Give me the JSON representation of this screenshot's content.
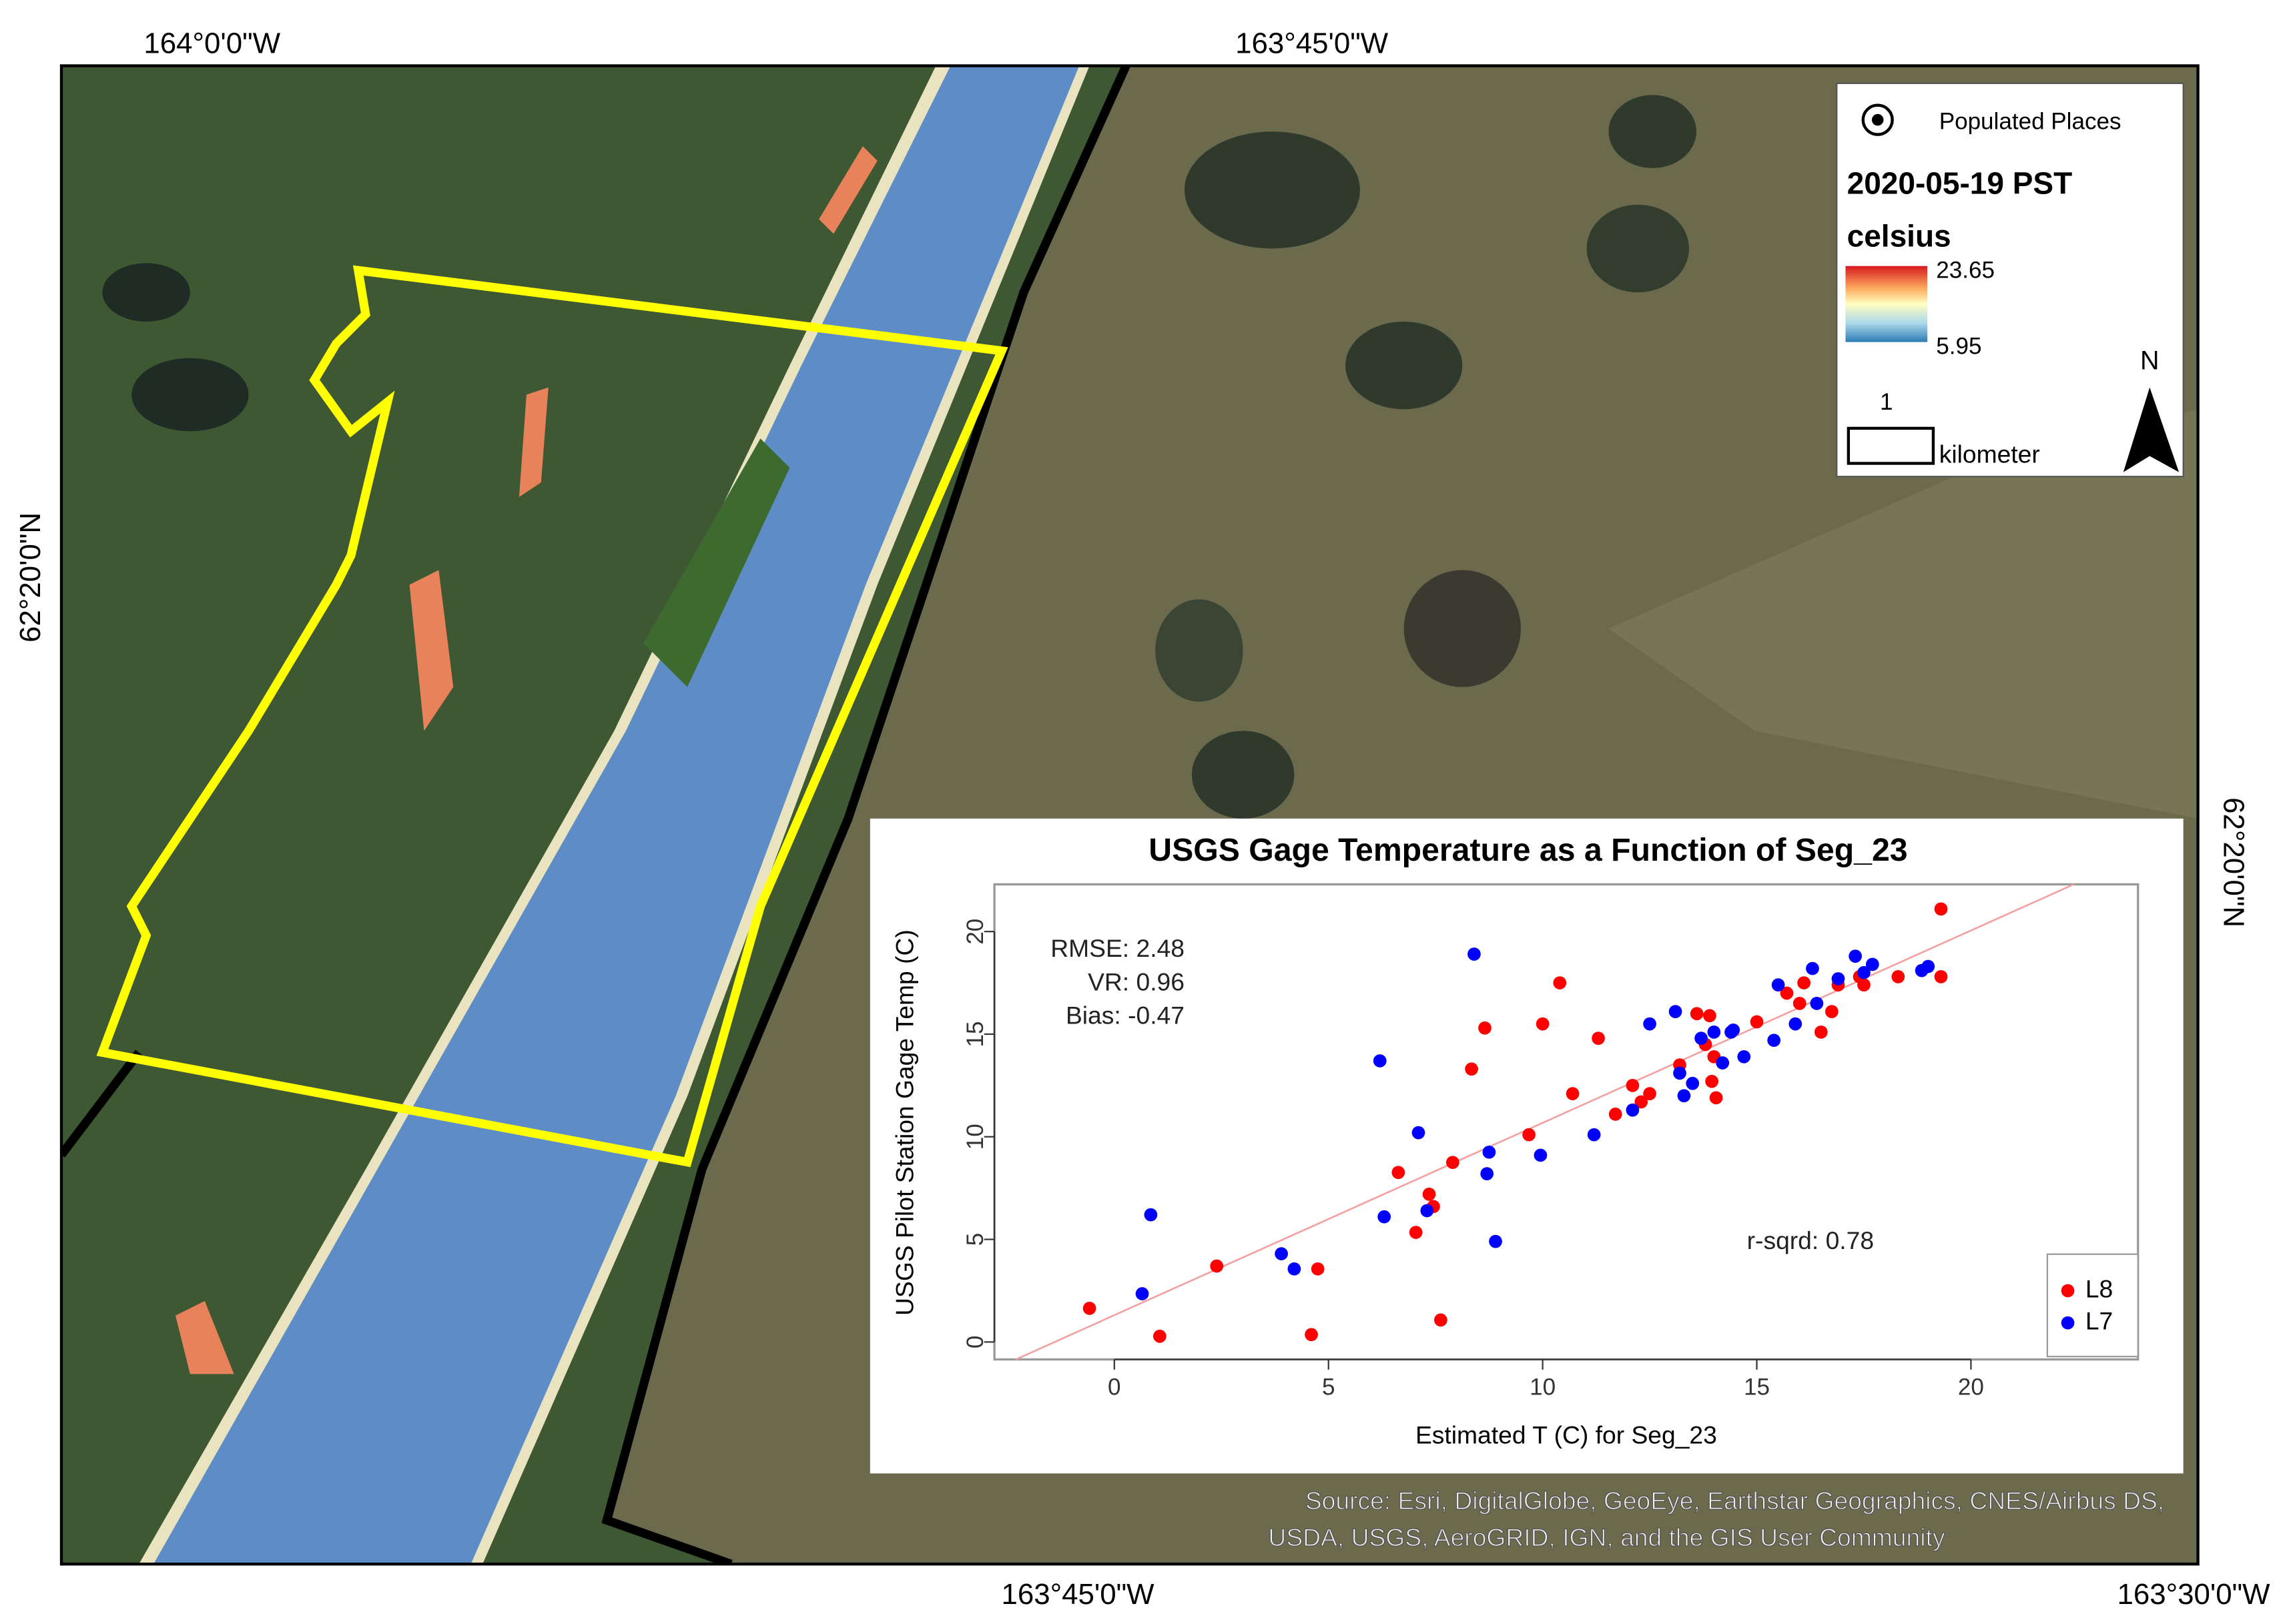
{
  "map": {
    "top_labels": [
      "164°0'0\"W",
      "163°45'0\"W"
    ],
    "bottom_labels": [
      "163°45'0\"W",
      "163°30'0\"W"
    ],
    "left_label": "62°20'0\"N",
    "right_label": "62°20'0\"N",
    "legend": {
      "populated": "Populated Places",
      "date": "2020-05-19 PST",
      "unit": "celsius",
      "max": 23.65,
      "min": 5.95,
      "scale_value": 1,
      "scale_unit": "kilometer",
      "north": "N"
    },
    "source": [
      "Source: Esri, DigitalGlobe, GeoEye, Earthstar Geographics, CNES/Airbus DS,",
      "USDA, USGS, AeroGRID, IGN, and the GIS User Community"
    ]
  },
  "chart_data": {
    "type": "scatter",
    "title": "USGS Gage Temperature as a Function of Seg_23",
    "x_label": "Estimated T (C) for Seg_23",
    "y_label": "USGS Pilot Station Gage Temp (C)",
    "annotations": [
      "RMSE: 2.48",
      "VR: 0.96",
      "Bias: -0.47",
      "r-sqrd: 0.78"
    ],
    "xlim": [
      -2.8,
      23.9
    ],
    "ylim": [
      -0.85,
      22.3
    ],
    "xticks": [
      0,
      5,
      10,
      15,
      20
    ],
    "yticks": [
      0,
      5,
      10,
      15,
      20
    ],
    "legend": "lower right",
    "fit_line": {
      "color": "#f4a0a0",
      "x": [
        -2.3,
        22.4
      ],
      "y": [
        -0.85,
        22.3
      ]
    },
    "series": [
      {
        "name": "L8",
        "color": "#ff0000",
        "x": [
          -0.58,
          1.06,
          2.39,
          4.6,
          4.75,
          6.63,
          7.04,
          7.35,
          7.45,
          7.62,
          7.9,
          8.34,
          8.65,
          9.68,
          10.0,
          10.4,
          10.7,
          11.3,
          11.7,
          12.1,
          12.3,
          12.5,
          13.2,
          13.6,
          13.9,
          13.8,
          14.0,
          13.95,
          14.05,
          15.0,
          15.7,
          16.0,
          16.1,
          16.5,
          16.75,
          16.9,
          17.5,
          17.4,
          18.3,
          19.3,
          19.3
        ],
        "y": [
          1.64,
          0.28,
          3.7,
          0.36,
          3.56,
          8.26,
          5.34,
          7.2,
          6.6,
          1.07,
          8.75,
          13.3,
          15.3,
          10.1,
          15.5,
          17.5,
          12.1,
          14.8,
          11.1,
          12.5,
          11.7,
          12.1,
          13.5,
          16.0,
          15.9,
          14.5,
          13.9,
          12.7,
          11.9,
          15.6,
          17.0,
          16.5,
          17.5,
          15.1,
          16.1,
          17.4,
          17.4,
          17.8,
          17.8,
          21.1,
          17.8
        ]
      },
      {
        "name": "L7",
        "color": "#0000ff",
        "x": [
          0.65,
          0.85,
          3.9,
          4.2,
          6.2,
          6.3,
          7.1,
          7.3,
          8.4,
          8.7,
          8.75,
          8.9,
          9.95,
          11.2,
          12.1,
          12.5,
          13.1,
          13.2,
          13.3,
          13.5,
          13.7,
          14.0,
          14.2,
          14.4,
          14.7,
          14.45,
          15.4,
          15.5,
          15.9,
          16.3,
          16.4,
          16.9,
          17.3,
          17.5,
          17.7,
          18.85,
          19.0
        ],
        "y": [
          2.35,
          6.2,
          4.3,
          3.56,
          13.7,
          6.1,
          10.2,
          6.4,
          18.9,
          8.2,
          9.25,
          4.9,
          9.1,
          10.1,
          11.3,
          15.5,
          16.1,
          13.1,
          12.0,
          12.6,
          14.8,
          15.1,
          13.6,
          15.1,
          13.9,
          15.2,
          14.7,
          17.4,
          15.5,
          18.2,
          16.5,
          17.7,
          18.8,
          18.0,
          18.4,
          18.1,
          18.3
        ]
      }
    ]
  }
}
